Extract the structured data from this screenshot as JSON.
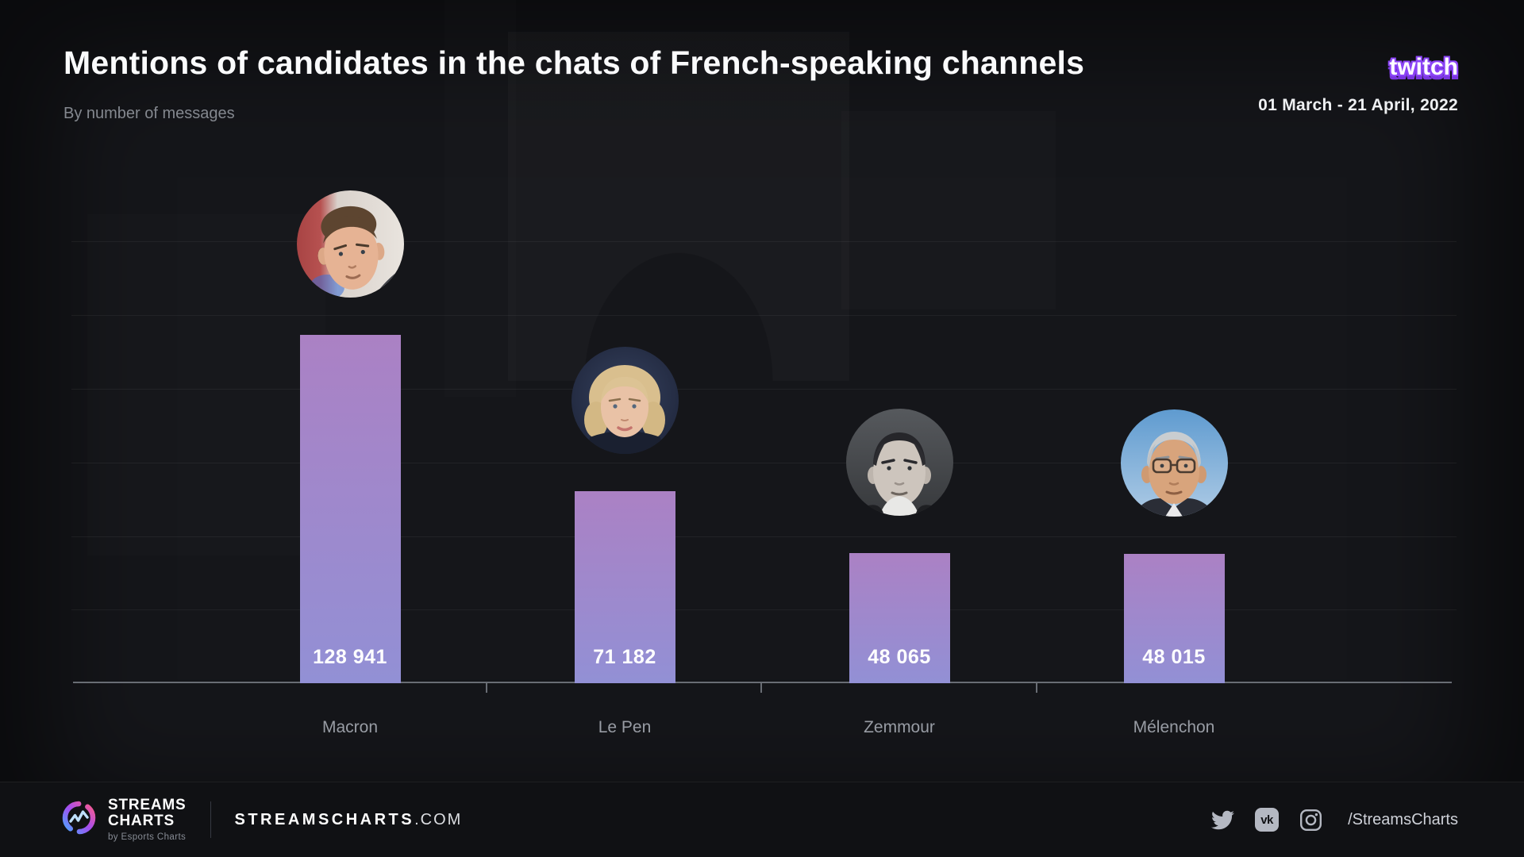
{
  "header": {
    "title": "Mentions of candidates in the chats of French-speaking channels",
    "subtitle": "By number of messages",
    "platform_wordmark": "twitch",
    "date_range": "01 March - 21 April, 2022"
  },
  "chart_data": {
    "type": "bar",
    "categories": [
      "Macron",
      "Le Pen",
      "Zemmour",
      "Mélenchon"
    ],
    "values": [
      128941,
      71182,
      48065,
      48015
    ],
    "value_labels": [
      "128 941",
      "71 182",
      "48 065",
      "48 015"
    ],
    "title": "Mentions of candidates in the chats of French-speaking channels",
    "subtitle": "By number of messages",
    "xlabel": "",
    "ylabel": "",
    "ylim": [
      0,
      150000
    ],
    "yticks_labeled": false,
    "grid": "horizontal-faint",
    "legend": "none",
    "bar_gradient_top": "#ab81c4",
    "bar_gradient_bottom": "#9290d5",
    "value_label_color": "#ffffff",
    "category_label_color": "#989ca4",
    "avatars": [
      "macron-avatar",
      "lepen-avatar",
      "zemmour-avatar",
      "melenchon-avatar"
    ]
  },
  "footer": {
    "brand_name_line1": "STREAMS",
    "brand_name_line2": "CHARTS",
    "brand_sub": "by Esports Charts",
    "site_name": "STREAMSCHARTS",
    "site_tld": ".COM",
    "vk_glyph": "vk",
    "social_icons": [
      "twitter-icon",
      "vk-icon",
      "instagram-icon"
    ],
    "social_handle": "/StreamsCharts"
  },
  "colors": {
    "background": "#15161a",
    "footer_background": "#101114",
    "twitch_purple": "#8c44f7",
    "axis": "#696d74",
    "brand_gradient": [
      "#ff5c8a",
      "#a44df0",
      "#4aa8ff"
    ]
  }
}
